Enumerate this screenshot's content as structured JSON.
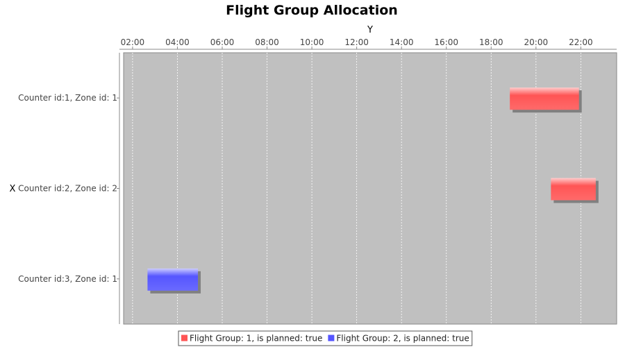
{
  "chart_data": {
    "type": "gantt",
    "title": "Flight Group Allocation",
    "xlabel": "X",
    "ylabel": "Y",
    "time_axis": {
      "range_hours": [
        1.6,
        23.6
      ],
      "ticks": [
        "02:00",
        "04:00",
        "06:00",
        "08:00",
        "10:00",
        "12:00",
        "14:00",
        "16:00",
        "18:00",
        "20:00",
        "22:00"
      ],
      "tick_hours": [
        2,
        4,
        6,
        8,
        10,
        12,
        14,
        16,
        18,
        20,
        22
      ],
      "grid": true
    },
    "categories": [
      "Counter id:1, Zone id: 1",
      "Counter id:2, Zone id: 2",
      "Counter id:3, Zone id: 1"
    ],
    "series": [
      {
        "name": "Flight Group: 1, is planned: true",
        "color": "#ff5555",
        "tasks": [
          {
            "category": "Counter id:1, Zone id: 1",
            "start": "18:50",
            "end": "21:55"
          },
          {
            "category": "Counter id:2, Zone id: 2",
            "start": "20:40",
            "end": "22:40"
          }
        ]
      },
      {
        "name": "Flight Group: 2, is planned: true",
        "color": "#5555ff",
        "tasks": [
          {
            "category": "Counter id:3, Zone id: 1",
            "start": "02:40",
            "end": "04:55"
          }
        ]
      }
    ],
    "legend_position": "bottom",
    "colors": {
      "plot_background": "#c0c0c0",
      "gridline": "#ffffff"
    }
  }
}
